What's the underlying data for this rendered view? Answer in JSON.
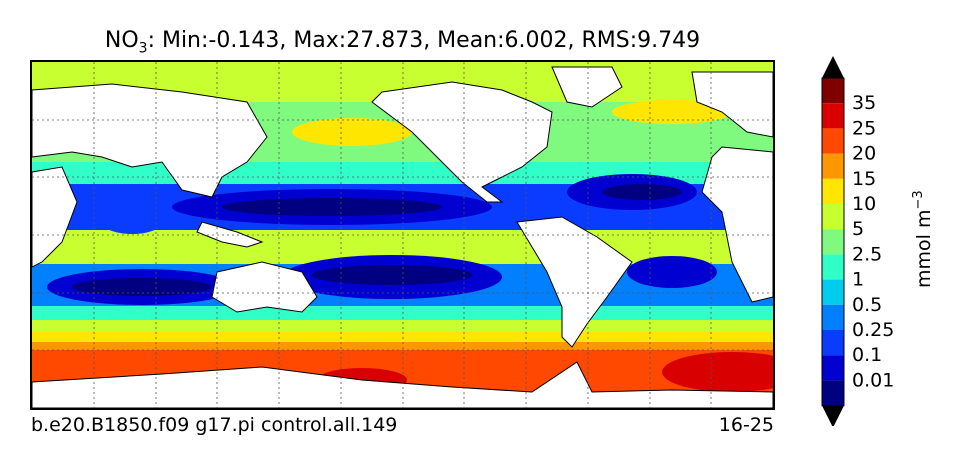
{
  "header": {
    "title_prefix": "NO",
    "title_subscript": "3",
    "title_stats": ": Min:-0.143, Max:27.873, Mean:6.002, RMS:9.749"
  },
  "footer": {
    "case_name": "b.e20.B1850.f09 g17.pi control.all.149",
    "year_range": "16-25"
  },
  "chart_data": {
    "type": "heatmap",
    "title": "NO3: Min:-0.143, Max:27.873, Mean:6.002, RMS:9.749",
    "variable": "NO3",
    "statistics": {
      "min": -0.143,
      "max": 27.873,
      "mean": 6.002,
      "rms": 9.749
    },
    "colorbar": {
      "label": "mmol m^-3",
      "levels": [
        0.01,
        0.1,
        0.25,
        0.5,
        1,
        2.5,
        5,
        10,
        15,
        20,
        25,
        35
      ],
      "tick_labels": [
        "0.01",
        "0.1",
        "0.25",
        "0.5",
        "1",
        "2.5",
        "5",
        "10",
        "15",
        "20",
        "25",
        "35"
      ],
      "colors": [
        "#000080",
        "#0000d0",
        "#0a3cff",
        "#0080ff",
        "#00ccee",
        "#30ffc8",
        "#7ffa7f",
        "#c8ff30",
        "#ffe600",
        "#ff9800",
        "#ff4800",
        "#d80000",
        "#800000"
      ],
      "extend": "both"
    },
    "map": {
      "projection": "cylindrical",
      "grid": "dotted",
      "land_color": "#ffffff"
    }
  }
}
